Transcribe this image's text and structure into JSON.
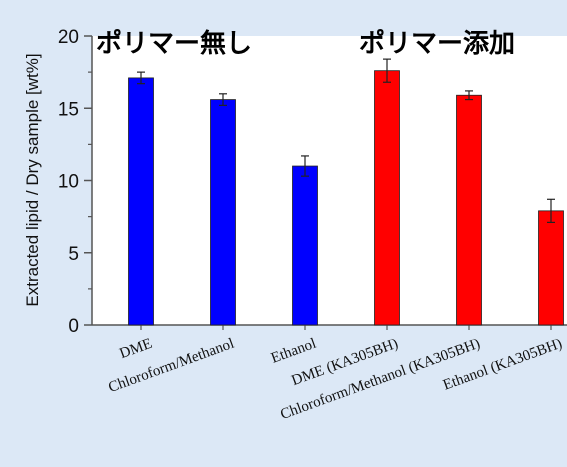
{
  "chart_data": {
    "type": "bar",
    "ylabel": "Extracted lipid / Dry sample [wt%]",
    "ylim": [
      0,
      20
    ],
    "yticks": [
      "0",
      "5",
      "10",
      "15",
      "20"
    ],
    "categories": [
      "DME",
      "Chloroform/Methanol",
      "Ethanol",
      "DME (KA305BH)",
      "Chloroform/Methanol (KA305BH)",
      "Ethanol (KA305BH)"
    ],
    "values": [
      17.1,
      15.6,
      11.0,
      17.6,
      15.9,
      7.9
    ],
    "errors": [
      0.4,
      0.4,
      0.7,
      0.8,
      0.3,
      0.8
    ],
    "colors": [
      "#0000ff",
      "#0000ff",
      "#0000ff",
      "#ff0000",
      "#ff0000",
      "#ff0000"
    ],
    "annotations": [
      "ポリマー無し",
      "ポリマー添加"
    ],
    "grid": false
  }
}
